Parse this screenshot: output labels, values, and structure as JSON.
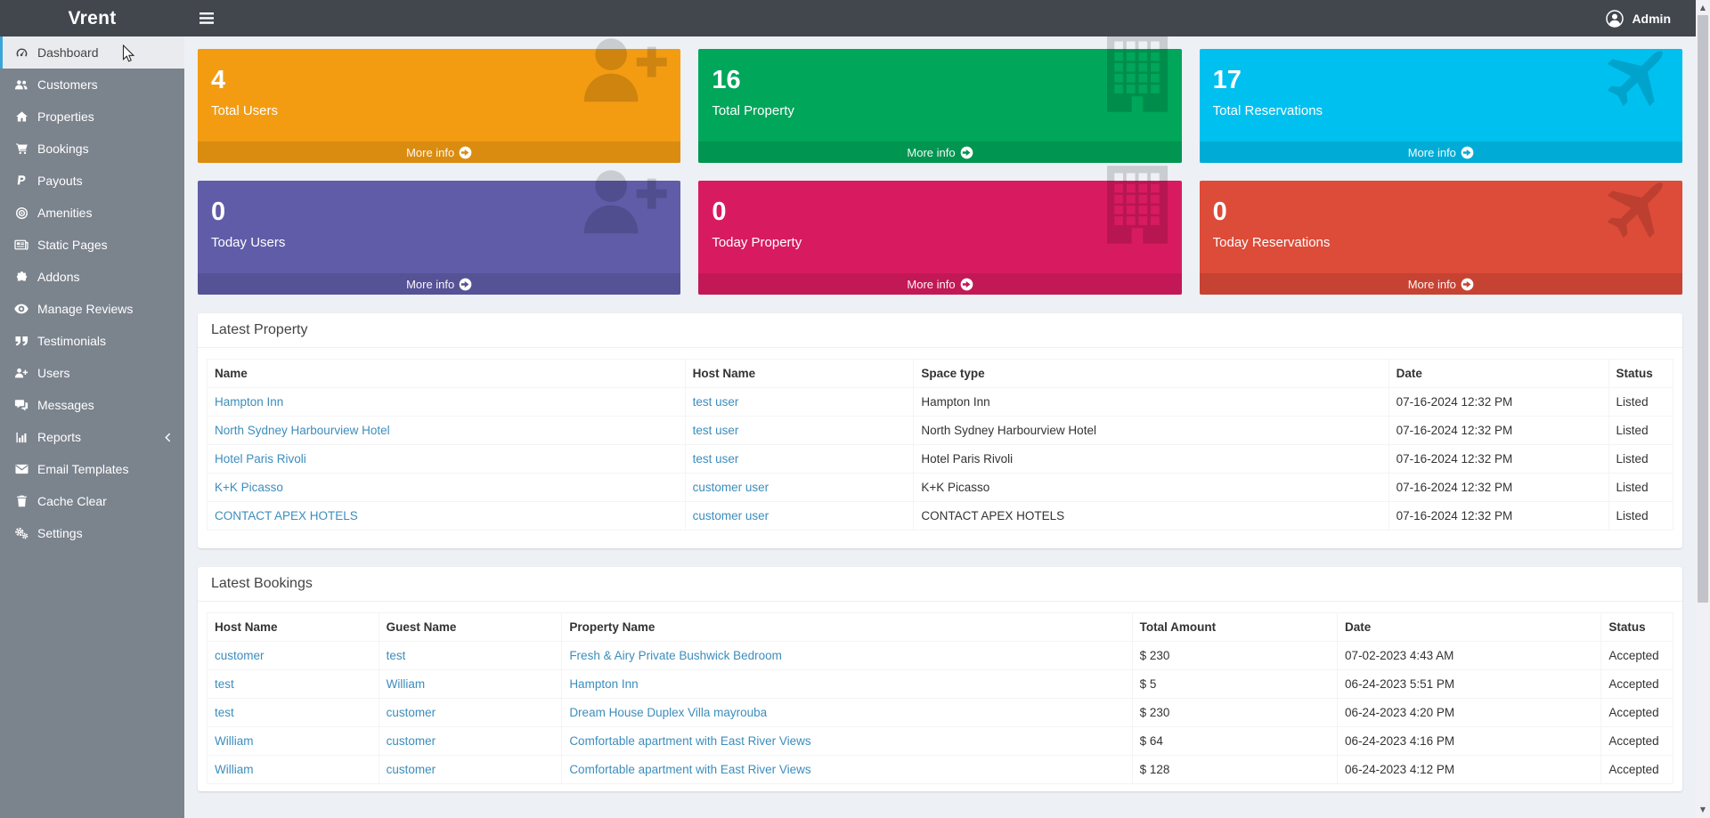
{
  "header": {
    "brand": "Vrent",
    "user": {
      "name": "Admin"
    }
  },
  "sidebar": {
    "items": [
      {
        "label": "Dashboard",
        "icon": "dashboard-icon",
        "active": true
      },
      {
        "label": "Customers",
        "icon": "customers-icon"
      },
      {
        "label": "Properties",
        "icon": "home-icon"
      },
      {
        "label": "Bookings",
        "icon": "cart-icon"
      },
      {
        "label": "Payouts",
        "icon": "paypal-icon"
      },
      {
        "label": "Amenities",
        "icon": "bullseye-icon"
      },
      {
        "label": "Static Pages",
        "icon": "newspaper-icon"
      },
      {
        "label": "Addons",
        "icon": "puzzle-icon"
      },
      {
        "label": "Manage Reviews",
        "icon": "eye-icon"
      },
      {
        "label": "Testimonials",
        "icon": "quote-icon"
      },
      {
        "label": "Users",
        "icon": "user-plus-icon"
      },
      {
        "label": "Messages",
        "icon": "comments-icon"
      },
      {
        "label": "Reports",
        "icon": "bar-chart-icon",
        "chevron": true
      },
      {
        "label": "Email Templates",
        "icon": "envelope-icon"
      },
      {
        "label": "Cache Clear",
        "icon": "trash-icon"
      },
      {
        "label": "Settings",
        "icon": "gears-icon"
      }
    ]
  },
  "stat_cards": [
    {
      "value": "4",
      "label": "Total Users",
      "color": "#f39c12",
      "icon": "user-plus-icon"
    },
    {
      "value": "16",
      "label": "Total Property",
      "color": "#00a65a",
      "icon": "building-icon"
    },
    {
      "value": "17",
      "label": "Total Reservations",
      "color": "#00c0ef",
      "icon": "plane-icon"
    },
    {
      "value": "0",
      "label": "Today Users",
      "color": "#605ca8",
      "icon": "user-plus-icon"
    },
    {
      "value": "0",
      "label": "Today Property",
      "color": "#d81b60",
      "icon": "building-icon"
    },
    {
      "value": "0",
      "label": "Today Reservations",
      "color": "#dd4b39",
      "icon": "plane-icon"
    }
  ],
  "more_info_label": "More info",
  "tables": {
    "latest_property": {
      "title": "Latest Property",
      "columns": [
        "Name",
        "Host Name",
        "Space type",
        "Date",
        "Status"
      ],
      "rows": [
        [
          "Hampton Inn",
          "test user",
          "Hampton Inn",
          "07-16-2024 12:32 PM",
          "Listed"
        ],
        [
          "North Sydney Harbourview Hotel",
          "test user",
          "North Sydney Harbourview Hotel",
          "07-16-2024 12:32 PM",
          "Listed"
        ],
        [
          "Hotel Paris Rivoli",
          "test user",
          "Hotel Paris Rivoli",
          "07-16-2024 12:32 PM",
          "Listed"
        ],
        [
          "K+K Picasso",
          "customer user",
          "K+K Picasso",
          "07-16-2024 12:32 PM",
          "Listed"
        ],
        [
          "CONTACT APEX HOTELS",
          "customer user",
          "CONTACT APEX HOTELS",
          "07-16-2024 12:32 PM",
          "Listed"
        ]
      ]
    },
    "latest_bookings": {
      "title": "Latest Bookings",
      "columns": [
        "Host Name",
        "Guest Name",
        "Property Name",
        "Total Amount",
        "Date",
        "Status"
      ],
      "rows": [
        [
          "customer",
          "test",
          "Fresh & Airy Private Bushwick Bedroom",
          "$ 230",
          "07-02-2023 4:43 AM",
          "Accepted"
        ],
        [
          "test",
          "William",
          "Hampton Inn",
          "$ 5",
          "06-24-2023 5:51 PM",
          "Accepted"
        ],
        [
          "test",
          "customer",
          "Dream House Duplex Villa mayrouba",
          "$ 230",
          "06-24-2023 4:20 PM",
          "Accepted"
        ],
        [
          "William",
          "customer",
          "Comfortable apartment with East River Views",
          "$ 64",
          "06-24-2023 4:16 PM",
          "Accepted"
        ],
        [
          "William",
          "customer",
          "Comfortable apartment with East River Views",
          "$ 128",
          "06-24-2023 4:12 PM",
          "Accepted"
        ]
      ]
    }
  },
  "colors": {
    "navbar": "#42474e",
    "sidebar": "#7b838d",
    "sidebar_active_border": "#3aa5d9",
    "link": "#3c8dbc",
    "page_background": "#edf0f5"
  }
}
